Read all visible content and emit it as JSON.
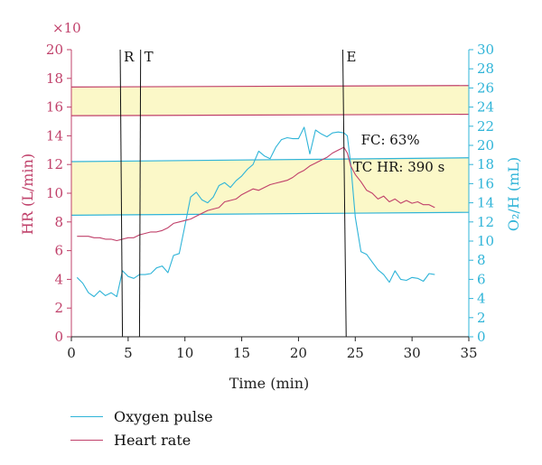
{
  "chart_data": {
    "type": "line",
    "xlabel": "Time (min)",
    "ylabel_left": "HR (L/min)",
    "ylabel_right": "O₂/H (mL)",
    "y_multiplier": "×10",
    "xlim": [
      0,
      35
    ],
    "ylim_left": [
      0,
      20
    ],
    "ylim_right": [
      0,
      30
    ],
    "x_ticks": [
      0,
      5,
      10,
      15,
      20,
      25,
      30,
      35
    ],
    "y_left_ticks": [
      0,
      2,
      4,
      6,
      8,
      10,
      12,
      14,
      16,
      18,
      20
    ],
    "y_right_ticks": [
      0,
      2,
      4,
      6,
      8,
      10,
      12,
      14,
      16,
      18,
      20,
      22,
      24,
      26,
      28,
      30
    ],
    "colors": {
      "heart_rate": "#c0406a",
      "oxygen_pulse": "#2fb4d8",
      "band_fill": "#fbf8c8"
    },
    "vertical_markers": [
      {
        "label": "R",
        "x_bottom": 4.5,
        "x_top": 4.3
      },
      {
        "label": "T",
        "x_bottom": 6.0,
        "x_top": 6.1
      },
      {
        "label": "E",
        "x_bottom": 24.2,
        "x_top": 23.9
      }
    ],
    "horizontal_lines_left": [
      {
        "y_start": 17.4,
        "y_end": 17.5
      },
      {
        "y_start": 15.4,
        "y_end": 15.5
      }
    ],
    "horizontal_lines_right": [
      {
        "y_start": 18.3,
        "y_end": 18.7
      },
      {
        "y_start": 12.7,
        "y_end": 13.0
      }
    ],
    "annotations": [
      {
        "text": "FC: 63%",
        "x": 25.5,
        "y_left": 13.4
      },
      {
        "text": "TC HR: 390 s",
        "x": 24.8,
        "y_left": 11.5
      }
    ],
    "series": [
      {
        "name": "Oxygen pulse",
        "axis": "right",
        "x": [
          0.5,
          1,
          1.5,
          2,
          2.5,
          3,
          3.5,
          4,
          4.5,
          5,
          5.5,
          6,
          6.5,
          7,
          7.5,
          8,
          8.5,
          9,
          9.5,
          10,
          10.5,
          11,
          11.5,
          12,
          12.5,
          13,
          13.5,
          14,
          14.5,
          15,
          15.5,
          16,
          16.5,
          17,
          17.5,
          18,
          18.5,
          19,
          19.5,
          20,
          20.5,
          21,
          21.5,
          22,
          22.5,
          23,
          23.5,
          24,
          24.3,
          24.6,
          25,
          25.5,
          26,
          26.5,
          27,
          27.5,
          28,
          28.5,
          29,
          29.5,
          30,
          30.5,
          31,
          31.5,
          32
        ],
        "values": [
          6.2,
          5.6,
          4.6,
          4.2,
          4.8,
          4.3,
          4.6,
          4.2,
          6.9,
          6.3,
          6.1,
          6.5,
          6.5,
          6.6,
          7.2,
          7.4,
          6.7,
          8.5,
          8.7,
          11.6,
          14.6,
          15.1,
          14.3,
          14.0,
          14.6,
          15.8,
          16.1,
          15.6,
          16.3,
          16.8,
          17.5,
          18.0,
          19.4,
          18.9,
          18.6,
          19.8,
          20.6,
          20.8,
          20.7,
          20.7,
          21.9,
          19.1,
          21.6,
          21.2,
          20.9,
          21.3,
          21.4,
          21.3,
          21.0,
          18.0,
          12.5,
          8.9,
          8.6,
          7.8,
          7.0,
          6.5,
          5.7,
          6.9,
          6.0,
          5.9,
          6.2,
          6.1,
          5.8,
          6.6,
          6.5
        ]
      },
      {
        "name": "Heart rate",
        "axis": "left",
        "x": [
          0.5,
          1,
          1.5,
          2,
          2.5,
          3,
          3.5,
          4,
          4.5,
          5,
          5.5,
          6,
          6.5,
          7,
          7.5,
          8,
          8.5,
          9,
          9.5,
          10,
          10.5,
          11,
          11.5,
          12,
          12.5,
          13,
          13.5,
          14,
          14.5,
          15,
          15.5,
          16,
          16.5,
          17,
          17.5,
          18,
          18.5,
          19,
          19.5,
          20,
          20.5,
          21,
          21.5,
          22,
          22.5,
          23,
          23.5,
          24,
          24.3,
          24.6,
          25,
          25.5,
          26,
          26.5,
          27,
          27.5,
          28,
          28.5,
          29,
          29.5,
          30,
          30.5,
          31,
          31.5,
          32
        ],
        "values": [
          7.0,
          7.0,
          7.0,
          6.9,
          6.9,
          6.8,
          6.8,
          6.7,
          6.8,
          6.9,
          6.9,
          7.1,
          7.2,
          7.3,
          7.3,
          7.4,
          7.6,
          7.9,
          8.0,
          8.1,
          8.2,
          8.4,
          8.6,
          8.8,
          8.9,
          9.0,
          9.4,
          9.5,
          9.6,
          9.9,
          10.1,
          10.3,
          10.2,
          10.4,
          10.6,
          10.7,
          10.8,
          10.9,
          11.1,
          11.4,
          11.6,
          11.9,
          12.1,
          12.3,
          12.5,
          12.8,
          13.0,
          13.2,
          12.8,
          11.9,
          11.3,
          10.8,
          10.2,
          10.0,
          9.6,
          9.8,
          9.4,
          9.6,
          9.3,
          9.5,
          9.3,
          9.4,
          9.2,
          9.2,
          9.0
        ]
      }
    ]
  }
}
